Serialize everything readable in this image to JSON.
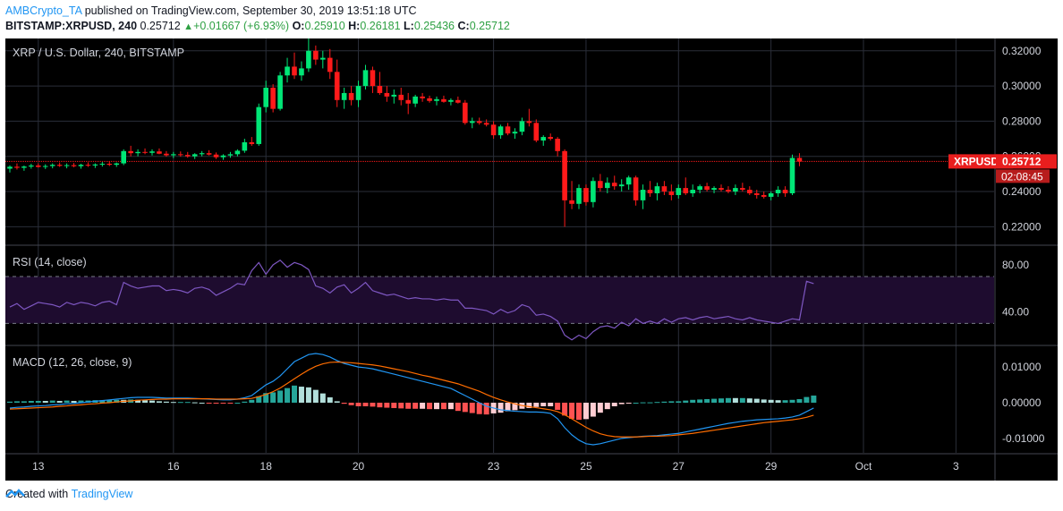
{
  "header": {
    "user": "AMBCrypto_TA",
    "published_text": "published on TradingView.com, September 30, 2019 13:51:18 UTC",
    "symbol": "BITSTAMP:XRPUSD, 240",
    "last": "0.25712",
    "change": "+0.01667 (+6.93%)",
    "o_label": "O:",
    "o": "0.25910",
    "h_label": "H:",
    "h": "0.26181",
    "l_label": "L:",
    "l": "0.25436",
    "c_label": "C:",
    "c": "0.25712"
  },
  "footer": {
    "created_with": "Created with",
    "brand": "TradingView"
  },
  "colors": {
    "up": "#00e676",
    "down": "#ff1a1a",
    "rsi": "#7e57c2",
    "macd": "#2196f3",
    "signal": "#ff6d00",
    "badge": "#e91e1e"
  },
  "chart_data": [
    {
      "type": "candlestick",
      "title": "XRP / U.S. Dollar, 240, BITSTAMP",
      "price_label": "XRPUSD",
      "price_value": "0.25712",
      "countdown": "02:08:45",
      "last_price": 0.25712,
      "ylim": [
        0.21,
        0.327
      ],
      "y_ticks": [
        "0.32000",
        "0.30000",
        "0.28000",
        "0.26000",
        "0.24000",
        "0.22000"
      ],
      "x_ticks": [
        "13",
        "16",
        "18",
        "20",
        "23",
        "25",
        "27",
        "29",
        "Oct",
        "3"
      ],
      "candles": [
        [
          0.253,
          0.2549,
          0.2508,
          0.2541
        ],
        [
          0.2541,
          0.256,
          0.2525,
          0.2535
        ],
        [
          0.2535,
          0.2548,
          0.2518,
          0.2542
        ],
        [
          0.2542,
          0.2558,
          0.253,
          0.2548
        ],
        [
          0.2548,
          0.256,
          0.2536,
          0.254
        ],
        [
          0.254,
          0.2555,
          0.2528,
          0.2545
        ],
        [
          0.2545,
          0.256,
          0.2532,
          0.2552
        ],
        [
          0.2552,
          0.2565,
          0.254,
          0.2546
        ],
        [
          0.2546,
          0.256,
          0.2532,
          0.255
        ],
        [
          0.255,
          0.2562,
          0.2538,
          0.2544
        ],
        [
          0.2544,
          0.2558,
          0.253,
          0.2552
        ],
        [
          0.2552,
          0.2566,
          0.254,
          0.2548
        ],
        [
          0.2548,
          0.256,
          0.2534,
          0.2554
        ],
        [
          0.2554,
          0.2568,
          0.2542,
          0.2558
        ],
        [
          0.2558,
          0.2572,
          0.2545,
          0.2552
        ],
        [
          0.2552,
          0.2565,
          0.254,
          0.256
        ],
        [
          0.256,
          0.264,
          0.255,
          0.263
        ],
        [
          0.263,
          0.266,
          0.26,
          0.2618
        ],
        [
          0.2618,
          0.264,
          0.26,
          0.2625
        ],
        [
          0.2625,
          0.2645,
          0.2612,
          0.262
        ],
        [
          0.262,
          0.264,
          0.2605,
          0.2628
        ],
        [
          0.2628,
          0.2645,
          0.2612,
          0.2615
        ],
        [
          0.2615,
          0.263,
          0.2598,
          0.2606
        ],
        [
          0.2606,
          0.2625,
          0.259,
          0.2612
        ],
        [
          0.2612,
          0.2628,
          0.2598,
          0.2608
        ],
        [
          0.2608,
          0.2625,
          0.2592,
          0.26
        ],
        [
          0.26,
          0.2618,
          0.2585,
          0.2612
        ],
        [
          0.2612,
          0.263,
          0.26,
          0.2618
        ],
        [
          0.2618,
          0.2635,
          0.2605,
          0.261
        ],
        [
          0.261,
          0.2622,
          0.2585,
          0.2595
        ],
        [
          0.2595,
          0.2612,
          0.258,
          0.2605
        ],
        [
          0.2605,
          0.2625,
          0.2592,
          0.2612
        ],
        [
          0.2612,
          0.264,
          0.26,
          0.2632
        ],
        [
          0.2632,
          0.27,
          0.262,
          0.268
        ],
        [
          0.268,
          0.271,
          0.266,
          0.267
        ],
        [
          0.267,
          0.29,
          0.266,
          0.288
        ],
        [
          0.288,
          0.303,
          0.285,
          0.299
        ],
        [
          0.299,
          0.301,
          0.285,
          0.287
        ],
        [
          0.287,
          0.308,
          0.286,
          0.306
        ],
        [
          0.306,
          0.316,
          0.302,
          0.311
        ],
        [
          0.311,
          0.319,
          0.304,
          0.306
        ],
        [
          0.306,
          0.314,
          0.303,
          0.31
        ],
        [
          0.31,
          0.327,
          0.308,
          0.32
        ],
        [
          0.32,
          0.323,
          0.312,
          0.315
        ],
        [
          0.315,
          0.32,
          0.31,
          0.316
        ],
        [
          0.316,
          0.321,
          0.304,
          0.308
        ],
        [
          0.308,
          0.315,
          0.288,
          0.292
        ],
        [
          0.292,
          0.299,
          0.287,
          0.296
        ],
        [
          0.296,
          0.3,
          0.289,
          0.292
        ],
        [
          0.292,
          0.303,
          0.288,
          0.3
        ],
        [
          0.3,
          0.312,
          0.298,
          0.309
        ],
        [
          0.309,
          0.311,
          0.296,
          0.3
        ],
        [
          0.3,
          0.308,
          0.295,
          0.296
        ],
        [
          0.296,
          0.3,
          0.291,
          0.294
        ],
        [
          0.294,
          0.298,
          0.29,
          0.295
        ],
        [
          0.295,
          0.299,
          0.289,
          0.292
        ],
        [
          0.292,
          0.296,
          0.284,
          0.29
        ],
        [
          0.29,
          0.295,
          0.288,
          0.294
        ],
        [
          0.294,
          0.296,
          0.291,
          0.293
        ],
        [
          0.293,
          0.2945,
          0.2905,
          0.2915
        ],
        [
          0.2915,
          0.294,
          0.289,
          0.2925
        ],
        [
          0.2925,
          0.2945,
          0.2905,
          0.291
        ],
        [
          0.291,
          0.293,
          0.289,
          0.292
        ],
        [
          0.292,
          0.294,
          0.29,
          0.2905
        ],
        [
          0.2905,
          0.292,
          0.278,
          0.279
        ],
        [
          0.279,
          0.282,
          0.276,
          0.28
        ],
        [
          0.28,
          0.282,
          0.278,
          0.279
        ],
        [
          0.279,
          0.281,
          0.277,
          0.278
        ],
        [
          0.278,
          0.28,
          0.27,
          0.272
        ],
        [
          0.272,
          0.278,
          0.27,
          0.277
        ],
        [
          0.277,
          0.279,
          0.272,
          0.273
        ],
        [
          0.273,
          0.276,
          0.27,
          0.274
        ],
        [
          0.274,
          0.282,
          0.272,
          0.28
        ],
        [
          0.28,
          0.287,
          0.277,
          0.279
        ],
        [
          0.279,
          0.281,
          0.268,
          0.269
        ],
        [
          0.269,
          0.272,
          0.266,
          0.271
        ],
        [
          0.271,
          0.273,
          0.269,
          0.27
        ],
        [
          0.27,
          0.271,
          0.26,
          0.263
        ],
        [
          0.263,
          0.264,
          0.22,
          0.235
        ],
        [
          0.235,
          0.246,
          0.23,
          0.233
        ],
        [
          0.233,
          0.244,
          0.23,
          0.242
        ],
        [
          0.242,
          0.244,
          0.232,
          0.234
        ],
        [
          0.234,
          0.248,
          0.231,
          0.246
        ],
        [
          0.246,
          0.25,
          0.24,
          0.242
        ],
        [
          0.242,
          0.248,
          0.239,
          0.245
        ],
        [
          0.245,
          0.249,
          0.241,
          0.243
        ],
        [
          0.243,
          0.247,
          0.24,
          0.244
        ],
        [
          0.244,
          0.249,
          0.241,
          0.248
        ],
        [
          0.248,
          0.249,
          0.232,
          0.235
        ],
        [
          0.235,
          0.244,
          0.23,
          0.241
        ],
        [
          0.241,
          0.246,
          0.237,
          0.239
        ],
        [
          0.239,
          0.245,
          0.235,
          0.243
        ],
        [
          0.243,
          0.246,
          0.238,
          0.24
        ],
        [
          0.24,
          0.244,
          0.235,
          0.238
        ],
        [
          0.238,
          0.244,
          0.236,
          0.242
        ],
        [
          0.242,
          0.248,
          0.238,
          0.239
        ],
        [
          0.239,
          0.244,
          0.237,
          0.241
        ],
        [
          0.241,
          0.244,
          0.239,
          0.243
        ],
        [
          0.243,
          0.245,
          0.24,
          0.241
        ],
        [
          0.241,
          0.243,
          0.239,
          0.242
        ],
        [
          0.242,
          0.244,
          0.24,
          0.241
        ],
        [
          0.241,
          0.243,
          0.239,
          0.24
        ],
        [
          0.24,
          0.244,
          0.238,
          0.242
        ],
        [
          0.242,
          0.245,
          0.24,
          0.241
        ],
        [
          0.241,
          0.243,
          0.238,
          0.239
        ],
        [
          0.239,
          0.241,
          0.236,
          0.238
        ],
        [
          0.238,
          0.24,
          0.236,
          0.237
        ],
        [
          0.237,
          0.24,
          0.235,
          0.239
        ],
        [
          0.239,
          0.243,
          0.237,
          0.241
        ],
        [
          0.241,
          0.243,
          0.237,
          0.239
        ],
        [
          0.239,
          0.261,
          0.238,
          0.2591
        ],
        [
          0.2591,
          0.2618,
          0.2544,
          0.2571
        ]
      ]
    },
    {
      "type": "line",
      "title": "RSI (14, close)",
      "ylim": [
        12,
        96
      ],
      "y_ticks": [
        "80.00",
        "40.00"
      ],
      "bands": [
        70,
        30
      ],
      "values": [
        44,
        47,
        42,
        45,
        48,
        47,
        46,
        44,
        48,
        46,
        48,
        47,
        45,
        48,
        49,
        46,
        65,
        62,
        60,
        61,
        62,
        62,
        58,
        59,
        58,
        56,
        60,
        61,
        59,
        54,
        57,
        60,
        64,
        63,
        75,
        82,
        72,
        80,
        84,
        78,
        82,
        80,
        76,
        62,
        60,
        56,
        61,
        63,
        56,
        60,
        65,
        58,
        56,
        54,
        55,
        53,
        51,
        52,
        51,
        51,
        50,
        51,
        50,
        50,
        43,
        43,
        42,
        41,
        38,
        42,
        39,
        41,
        46,
        44,
        37,
        38,
        36,
        32,
        20,
        16,
        20,
        17,
        23,
        27,
        28,
        26,
        31,
        28,
        34,
        30,
        32,
        30,
        34,
        31,
        34,
        35,
        33,
        35,
        36,
        34,
        35,
        36,
        34,
        33,
        35,
        33,
        32,
        31,
        30,
        32,
        34,
        33,
        66,
        64
      ]
    },
    {
      "type": "bar+line",
      "title": "MACD (12, 26, close, 9)",
      "ylim": [
        -0.0138,
        0.0158
      ],
      "y_ticks": [
        "0.01000",
        "0.00000",
        "-0.01000"
      ],
      "macd": [
        -0.0015,
        -0.0013,
        -0.0012,
        -0.001,
        -0.0009,
        -0.0008,
        -0.0006,
        -0.0005,
        -0.0003,
        -0.0002,
        0.0,
        0.0002,
        0.0004,
        0.0006,
        0.0008,
        0.001,
        0.0012,
        0.0014,
        0.0015,
        0.0015,
        0.0015,
        0.0014,
        0.0013,
        0.0013,
        0.0013,
        0.0013,
        0.0012,
        0.0011,
        0.001,
        0.0009,
        0.0008,
        0.0008,
        0.001,
        0.0014,
        0.002,
        0.0035,
        0.005,
        0.006,
        0.0075,
        0.0095,
        0.0115,
        0.0125,
        0.0135,
        0.0138,
        0.0135,
        0.0128,
        0.0118,
        0.011,
        0.0105,
        0.01,
        0.0098,
        0.0095,
        0.009,
        0.0085,
        0.008,
        0.0075,
        0.007,
        0.0065,
        0.006,
        0.0055,
        0.005,
        0.0045,
        0.004,
        0.003,
        0.002,
        0.001,
        0.0,
        -0.001,
        -0.0015,
        -0.002,
        -0.0022,
        -0.0024,
        -0.0025,
        -0.0026,
        -0.0026,
        -0.0027,
        -0.003,
        -0.0045,
        -0.007,
        -0.009,
        -0.0105,
        -0.0115,
        -0.0118,
        -0.0115,
        -0.011,
        -0.0105,
        -0.01,
        -0.0098,
        -0.0096,
        -0.0094,
        -0.0093,
        -0.0092,
        -0.009,
        -0.0088,
        -0.0086,
        -0.0082,
        -0.0078,
        -0.0074,
        -0.007,
        -0.0066,
        -0.0062,
        -0.0058,
        -0.0055,
        -0.0052,
        -0.005,
        -0.0048,
        -0.0047,
        -0.0046,
        -0.0045,
        -0.0043,
        -0.004,
        -0.0035,
        -0.0025,
        -0.0015
      ],
      "signal": [
        -0.0018,
        -0.0017,
        -0.0016,
        -0.0015,
        -0.0014,
        -0.0013,
        -0.0012,
        -0.001,
        -0.0009,
        -0.0007,
        -0.0006,
        -0.0004,
        -0.0003,
        -0.0001,
        0.0,
        0.0002,
        0.0004,
        0.0005,
        0.0007,
        0.0008,
        0.0009,
        0.001,
        0.001,
        0.0011,
        0.0011,
        0.0011,
        0.0011,
        0.0011,
        0.0011,
        0.001,
        0.001,
        0.001,
        0.001,
        0.0011,
        0.0012,
        0.0017,
        0.0023,
        0.0031,
        0.0041,
        0.0054,
        0.0067,
        0.008,
        0.0092,
        0.0102,
        0.0109,
        0.0113,
        0.0114,
        0.0113,
        0.0112,
        0.011,
        0.0108,
        0.0106,
        0.0103,
        0.0099,
        0.0095,
        0.0091,
        0.0087,
        0.0082,
        0.0077,
        0.0073,
        0.0068,
        0.0063,
        0.0058,
        0.0053,
        0.0046,
        0.0039,
        0.0032,
        0.0023,
        0.0015,
        0.0008,
        0.0002,
        -0.0003,
        -0.0008,
        -0.0011,
        -0.0014,
        -0.0017,
        -0.002,
        -0.0025,
        -0.0034,
        -0.0045,
        -0.0057,
        -0.0069,
        -0.0079,
        -0.0087,
        -0.0092,
        -0.0095,
        -0.0096,
        -0.0096,
        -0.0096,
        -0.0095,
        -0.0094,
        -0.0094,
        -0.0093,
        -0.0092,
        -0.009,
        -0.0088,
        -0.0086,
        -0.0083,
        -0.008,
        -0.0077,
        -0.0074,
        -0.0071,
        -0.0068,
        -0.0065,
        -0.0062,
        -0.0059,
        -0.0056,
        -0.0054,
        -0.0052,
        -0.005,
        -0.0048,
        -0.0045,
        -0.0041,
        -0.0035
      ]
    }
  ]
}
